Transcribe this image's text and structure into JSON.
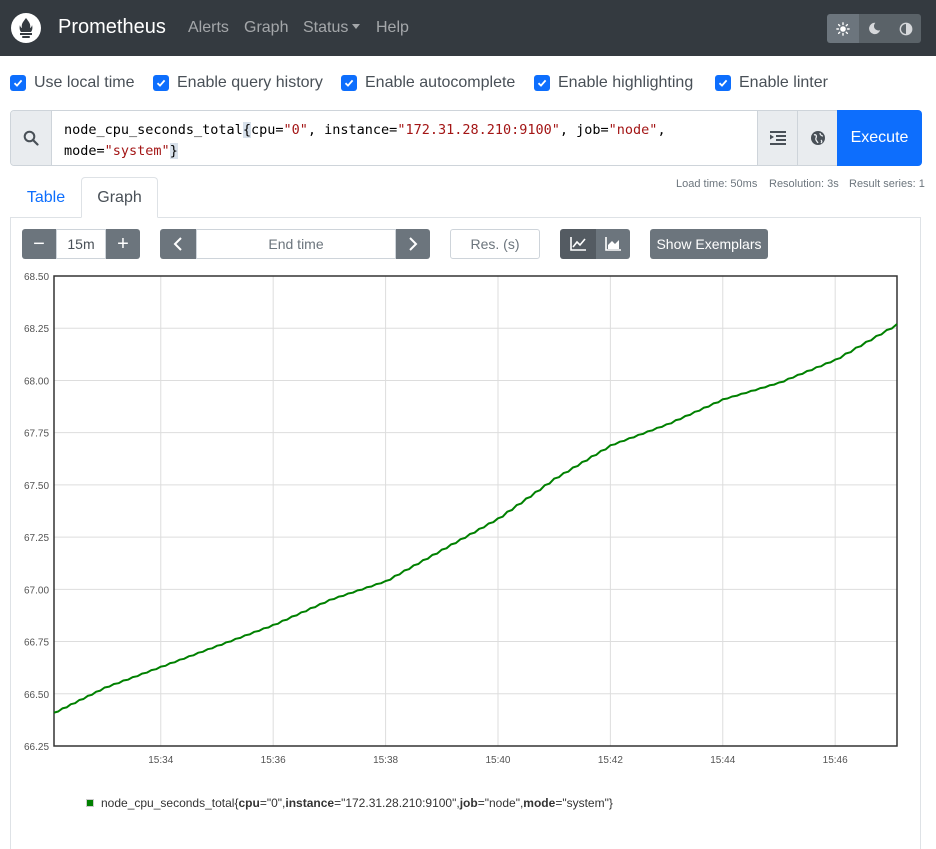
{
  "navbar": {
    "brand": "Prometheus",
    "links": [
      "Alerts",
      "Graph",
      "Status",
      "Help"
    ],
    "theme_buttons": [
      "sun-icon",
      "moon-icon",
      "contrast-icon"
    ]
  },
  "options": [
    {
      "label": "Use local time",
      "checked": true
    },
    {
      "label": "Enable query history",
      "checked": true
    },
    {
      "label": "Enable autocomplete",
      "checked": true
    },
    {
      "label": "Enable highlighting",
      "checked": true
    },
    {
      "label": "Enable linter",
      "checked": true
    }
  ],
  "query": {
    "metric": "node_cpu_seconds_total",
    "labels": [
      {
        "key": "cpu",
        "value": "\"0\""
      },
      {
        "key": "instance",
        "value": "\"172.31.28.210:9100\""
      },
      {
        "key": "job",
        "value": "\"node\""
      },
      {
        "key": "mode",
        "value": "\"system\""
      }
    ],
    "execute_label": "Execute"
  },
  "stats": {
    "load_time": "Load time: 50ms",
    "resolution": "Resolution: 3s",
    "result_series": "Result series: 1"
  },
  "tabs": [
    "Table",
    "Graph"
  ],
  "graph_controls": {
    "minus": "−",
    "range": "15m",
    "plus": "+",
    "end_time_placeholder": "End time",
    "resolution_placeholder": "Res. (s)",
    "show_exemplars": "Show Exemplars"
  },
  "colors": {
    "series": "#008000",
    "accent": "#0d6efd",
    "navbar": "#343a40"
  },
  "chart_data": {
    "type": "line",
    "ylim": [
      66.25,
      68.5
    ],
    "y_ticks": [
      "66.25",
      "66.50",
      "66.75",
      "67.00",
      "67.25",
      "67.50",
      "67.75",
      "68.00",
      "68.25",
      "68.50"
    ],
    "x_ticks": [
      "15:34",
      "15:36",
      "15:38",
      "15:40",
      "15:42",
      "15:44",
      "15:46"
    ],
    "grid": true,
    "series": [
      {
        "name": "node_cpu_seconds_total{cpu=\"0\", instance=\"172.31.28.210:9100\", job=\"node\", mode=\"system\"}",
        "x": [
          "15:32:06",
          "15:33:00",
          "15:34:00",
          "15:35:00",
          "15:36:00",
          "15:37:00",
          "15:38:00",
          "15:39:00",
          "15:40:00",
          "15:41:00",
          "15:42:00",
          "15:43:00",
          "15:44:00",
          "15:45:00",
          "15:46:00",
          "15:47:06"
        ],
        "values": [
          66.41,
          66.53,
          66.63,
          66.73,
          66.83,
          66.95,
          67.04,
          67.19,
          67.34,
          67.53,
          67.69,
          67.79,
          67.91,
          67.99,
          68.1,
          68.27
        ]
      }
    ],
    "legend": {
      "metric": "node_cpu_seconds_total",
      "labels": [
        {
          "key": "cpu",
          "value": "\"0\""
        },
        {
          "key": "instance",
          "value": "\"172.31.28.210:9100\""
        },
        {
          "key": "job",
          "value": "\"node\""
        },
        {
          "key": "mode",
          "value": "\"system\""
        }
      ]
    }
  }
}
